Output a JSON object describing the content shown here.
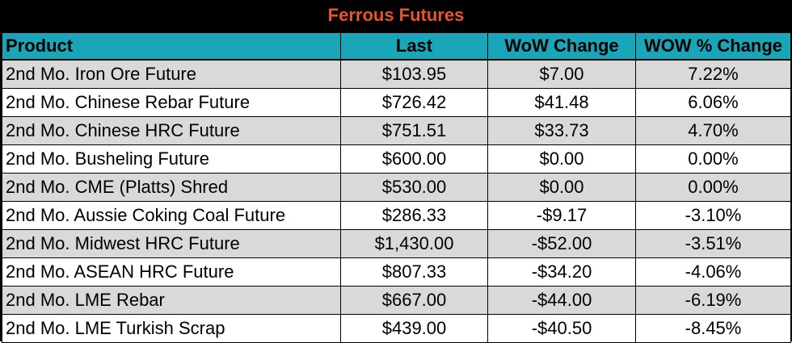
{
  "title": "Ferrous Futures",
  "headers": {
    "product": "Product",
    "last": "Last",
    "wow_change": "WoW Change",
    "wow_pct": "WOW % Change"
  },
  "rows": [
    {
      "product": "2nd Mo. Iron Ore Future",
      "last": "$103.95",
      "wow_change": "$7.00",
      "wow_pct": "7.22%"
    },
    {
      "product": "2nd Mo. Chinese Rebar Future",
      "last": "$726.42",
      "wow_change": "$41.48",
      "wow_pct": "6.06%"
    },
    {
      "product": "2nd Mo. Chinese HRC Future",
      "last": "$751.51",
      "wow_change": "$33.73",
      "wow_pct": "4.70%"
    },
    {
      "product": "2nd Mo. Busheling Future",
      "last": "$600.00",
      "wow_change": "$0.00",
      "wow_pct": "0.00%"
    },
    {
      "product": "2nd Mo. CME (Platts) Shred",
      "last": "$530.00",
      "wow_change": "$0.00",
      "wow_pct": "0.00%"
    },
    {
      "product": "2nd Mo. Aussie Coking Coal Future",
      "last": "$286.33",
      "wow_change": "-$9.17",
      "wow_pct": "-3.10%"
    },
    {
      "product": "2nd Mo. Midwest HRC Future",
      "last": "$1,430.00",
      "wow_change": "-$52.00",
      "wow_pct": "-3.51%"
    },
    {
      "product": "2nd Mo. ASEAN HRC Future",
      "last": "$807.33",
      "wow_change": "-$34.20",
      "wow_pct": "-4.06%"
    },
    {
      "product": "2nd Mo. LME Rebar",
      "last": "$667.00",
      "wow_change": "-$44.00",
      "wow_pct": "-6.19%"
    },
    {
      "product": "2nd Mo. LME Turkish Scrap",
      "last": "$439.00",
      "wow_change": "-$40.50",
      "wow_pct": "-8.45%"
    }
  ],
  "colors": {
    "title_background": "#000000",
    "title_text": "#e8552c",
    "header_background": "#1aa6b8",
    "shaded_row": "#d9d9d9",
    "plain_row": "#ffffff"
  }
}
